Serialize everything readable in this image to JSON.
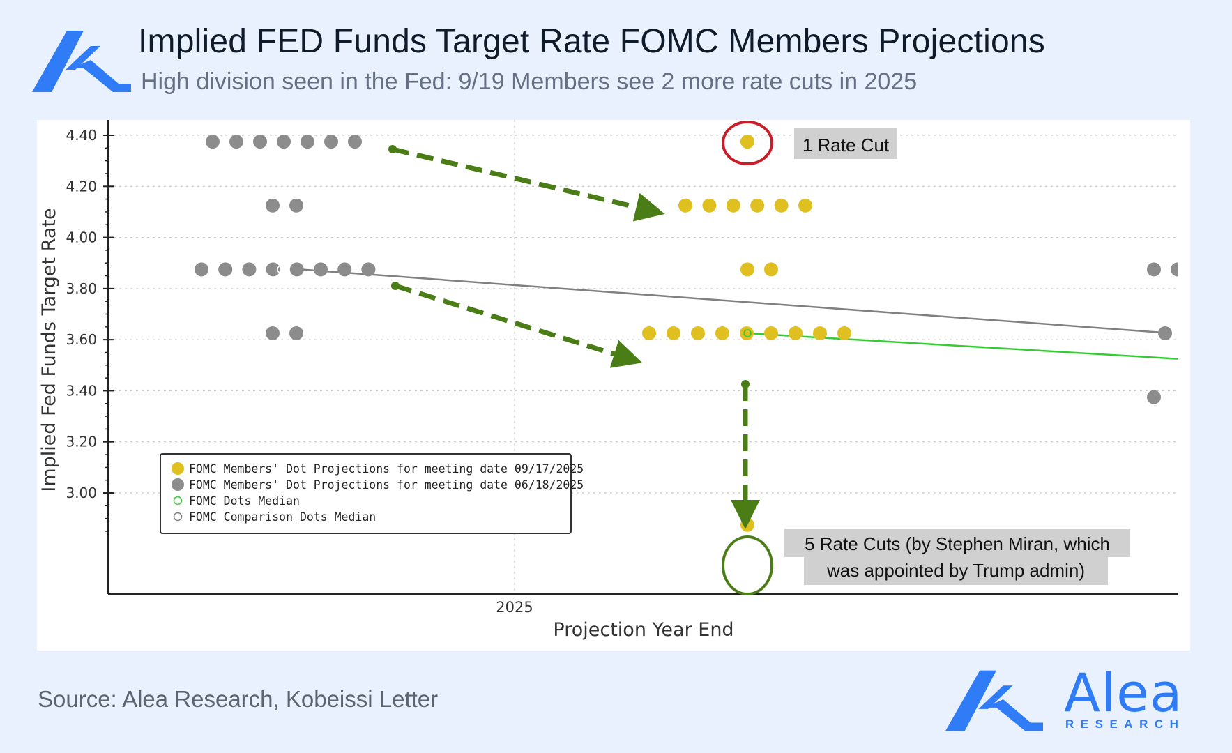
{
  "header": {
    "title": "Implied FED Funds Target Rate FOMC Members Projections",
    "subtitle": "High division seen in the Fed: 9/19 Members see 2 more rate cuts in 2025"
  },
  "footer": {
    "source": "Source: Alea Research, Kobeissi Letter",
    "brand_name": "Alea",
    "brand_sub": "RESEARCH"
  },
  "colors": {
    "background": "#e8f1fd",
    "brand_blue": "#2f7cf6",
    "sep_2025_dots": "#e0c020",
    "jun_2025_dots": "#8c8c8c",
    "median_line": "#33cc33",
    "comparison_median_line": "#808080",
    "arrow": "#4a7d16",
    "highlight_red": "#c81e2a",
    "highlight_green": "#4a7d16"
  },
  "chart_data": {
    "type": "scatter",
    "xlabel": "Projection Year End",
    "ylabel": "Implied Fed Funds Target Rate",
    "x_ticks": [
      "2025"
    ],
    "y_ticks": [
      "4.40",
      "4.20",
      "4.00",
      "3.80",
      "3.60",
      "3.40",
      "3.20",
      "3.00"
    ],
    "ylim": [
      2.82,
      4.45
    ],
    "grid": true,
    "legend_position": "bottom-left",
    "legend": [
      "FOMC Members' Dot Projections for meeting date 09/17/2025",
      "FOMC Members' Dot Projections for meeting date 06/18/2025",
      "FOMC Dots Median",
      "FOMC Comparison Dots Median"
    ],
    "series": [
      {
        "name": "FOMC Members' Dot Projections for meeting date 06/18/2025",
        "groups": [
          {
            "y": 4.375,
            "count": 7
          },
          {
            "y": 4.125,
            "count": 2
          },
          {
            "y": 3.875,
            "count": 8
          },
          {
            "y": 3.625,
            "count": 2
          }
        ]
      },
      {
        "name": "FOMC Members' Dot Projections for meeting date 09/17/2025",
        "groups": [
          {
            "y": 4.375,
            "count": 1
          },
          {
            "y": 4.125,
            "count": 6
          },
          {
            "y": 3.875,
            "count": 2
          },
          {
            "y": 3.625,
            "count": 9
          },
          {
            "y": 2.875,
            "count": 1
          }
        ]
      }
    ],
    "annotations": [
      {
        "text": "1 Rate Cut",
        "y": 4.375
      },
      {
        "text_line1": "5 Rate Cuts (by Stephen Miran, which",
        "text_line2": "was appointed by Trump admin)",
        "y": 2.875
      }
    ]
  }
}
